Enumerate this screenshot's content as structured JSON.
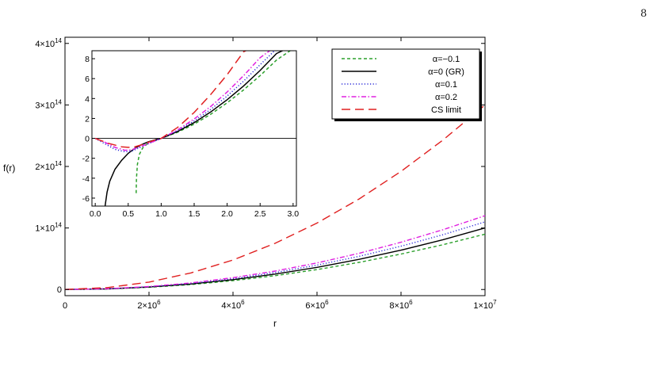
{
  "page": {
    "number": "8"
  },
  "chart_data": [
    {
      "type": "line",
      "panel": "main",
      "title": "",
      "xlabel": "r",
      "ylabel": "f(r)",
      "xlim": [
        0,
        10000000.0
      ],
      "ylim": [
        -10000000000000.0,
        410000000000000.0
      ],
      "x_ticks": [
        {
          "value": 0,
          "mant": "0",
          "exp": ""
        },
        {
          "value": 2000000,
          "mant": "2×10",
          "exp": "6"
        },
        {
          "value": 4000000,
          "mant": "4×10",
          "exp": "6"
        },
        {
          "value": 6000000,
          "mant": "6×10",
          "exp": "6"
        },
        {
          "value": 8000000,
          "mant": "8×10",
          "exp": "6"
        },
        {
          "value": 10000000,
          "mant": "1×10",
          "exp": "7"
        }
      ],
      "y_ticks": [
        {
          "value": 0,
          "mant": "0",
          "exp": ""
        },
        {
          "value": 100000000000000.0,
          "mant": "1×10",
          "exp": "14"
        },
        {
          "value": 200000000000000.0,
          "mant": "2×10",
          "exp": "14"
        },
        {
          "value": 300000000000000.0,
          "mant": "3×10",
          "exp": "14"
        },
        {
          "value": 400000000000000.0,
          "mant": "4×10",
          "exp": "14"
        }
      ],
      "x": [
        0,
        1000000,
        2000000,
        3000000,
        4000000,
        5000000,
        6000000,
        7000000,
        8000000,
        9000000,
        10000000
      ],
      "series": [
        {
          "name": "α=−0.1",
          "color": "#2ca02c",
          "dash": "dashed",
          "values": [
            0,
            900000000000.0,
            3600000000000.0,
            8100000000000.0,
            14400000000000.0,
            22500000000000.0,
            32400000000000.0,
            44100000000000.0,
            57600000000000.0,
            72900000000000.0,
            90000000000000.0
          ]
        },
        {
          "name": "α=0 (GR)",
          "color": "#000000",
          "dash": "solid",
          "values": [
            0,
            1000000000000.0,
            4000000000000.0,
            9000000000000.0,
            16000000000000.0,
            25000000000000.0,
            36000000000000.0,
            49000000000000.0,
            64000000000000.0,
            81000000000000.0,
            100000000000000.0
          ]
        },
        {
          "name": "α=0.1",
          "color": "#2a2ad8",
          "dash": "dotted",
          "values": [
            0,
            1100000000000.0,
            4400000000000.0,
            9900000000000.0,
            17600000000000.0,
            27500000000000.0,
            39600000000000.0,
            53900000000000.0,
            70400000000000.0,
            89100000000000.0,
            110000000000000.0
          ]
        },
        {
          "name": "α=0.2",
          "color": "#e020e0",
          "dash": "dashdot",
          "values": [
            0,
            1200000000000.0,
            4800000000000.0,
            10800000000000.0,
            19200000000000.0,
            30000000000000.0,
            43200000000000.0,
            58800000000000.0,
            76800000000000.0,
            97200000000000.0,
            120000000000000.0
          ]
        },
        {
          "name": "CS limit",
          "color": "#e02020",
          "dash": "longdash",
          "values": [
            0,
            3000000000000.0,
            12000000000000.0,
            27000000000000.0,
            48000000000000.0,
            75000000000000.0,
            108000000000000.0,
            147000000000000.0,
            192000000000000.0,
            243000000000000.0,
            300000000000000.0
          ]
        }
      ],
      "legend": {
        "placement": "top-right",
        "entries": [
          "α=−0.1",
          "α=0 (GR)",
          "α=0.1",
          "α=0.2",
          "CS limit"
        ]
      },
      "grid": false
    },
    {
      "type": "line",
      "panel": "inset",
      "title": "",
      "xlabel": "",
      "ylabel": "",
      "xlim": [
        -0.05,
        3.05
      ],
      "ylim": [
        -6.8,
        8.8
      ],
      "x_ticks": [
        "0.0",
        "0.5",
        "1.0",
        "1.5",
        "2.0",
        "2.5",
        "3.0"
      ],
      "y_ticks": [
        "-6",
        "-4",
        "-2",
        "0",
        "2",
        "4",
        "6",
        "8"
      ],
      "zero_line": true,
      "series": [
        {
          "name": "α=−0.1",
          "color": "#2ca02c",
          "dash": "dashed",
          "x": [
            0.62,
            0.625,
            0.64,
            0.67,
            0.72,
            0.8,
            0.9,
            1.0,
            1.25,
            1.5,
            1.75,
            2.0,
            2.25,
            2.5,
            2.75,
            3.0
          ],
          "y": [
            -5.5,
            -4.0,
            -2.6,
            -1.6,
            -0.95,
            -0.48,
            -0.21,
            0.0,
            0.62,
            1.43,
            2.42,
            3.57,
            4.87,
            6.3,
            7.87,
            9.0
          ]
        },
        {
          "name": "α=0 (GR)",
          "color": "#000000",
          "dash": "solid",
          "x": [
            0.15,
            0.18,
            0.22,
            0.3,
            0.4,
            0.5,
            0.6,
            0.7,
            0.8,
            0.9,
            1.0,
            1.25,
            1.5,
            1.75,
            2.0,
            2.25,
            2.5,
            2.75,
            3.0
          ],
          "y": [
            -6.8,
            -5.4,
            -4.3,
            -3.1,
            -2.2,
            -1.5,
            -1.0,
            -0.63,
            -0.36,
            -0.16,
            0.0,
            0.7,
            1.58,
            2.65,
            3.88,
            5.27,
            6.82,
            8.52,
            9.3
          ]
        },
        {
          "name": "α=0.1",
          "color": "#2a2ad8",
          "dash": "dotted",
          "x": [
            0.0,
            0.15,
            0.3,
            0.45,
            0.55,
            0.7,
            0.85,
            1.0,
            1.25,
            1.5,
            1.75,
            2.0,
            2.25,
            2.5,
            2.75,
            3.0
          ],
          "y": [
            0.0,
            -0.55,
            -1.1,
            -1.35,
            -1.3,
            -0.85,
            -0.42,
            0.0,
            0.78,
            1.75,
            2.9,
            4.25,
            5.75,
            7.4,
            9.0,
            9.4
          ]
        },
        {
          "name": "α=0.2",
          "color": "#e020e0",
          "dash": "dashdot",
          "x": [
            0.0,
            0.15,
            0.3,
            0.45,
            0.55,
            0.7,
            0.85,
            1.0,
            1.25,
            1.5,
            1.75,
            2.0,
            2.25,
            2.5,
            2.75,
            3.0
          ],
          "y": [
            0.0,
            -0.4,
            -0.9,
            -1.2,
            -1.15,
            -0.8,
            -0.4,
            0.0,
            0.85,
            1.95,
            3.2,
            4.65,
            6.3,
            8.1,
            9.3,
            9.5
          ]
        },
        {
          "name": "CS limit",
          "color": "#e02020",
          "dash": "longdash",
          "x": [
            0.0,
            0.2,
            0.4,
            0.5,
            0.6,
            0.7,
            0.8,
            0.9,
            1.0,
            1.25,
            1.5,
            1.75,
            2.0,
            2.25,
            2.5
          ],
          "y": [
            0.0,
            -0.5,
            -0.85,
            -0.9,
            -0.85,
            -0.65,
            -0.4,
            -0.18,
            0.0,
            1.1,
            2.6,
            4.4,
            6.4,
            8.7,
            9.5
          ]
        }
      ]
    }
  ]
}
